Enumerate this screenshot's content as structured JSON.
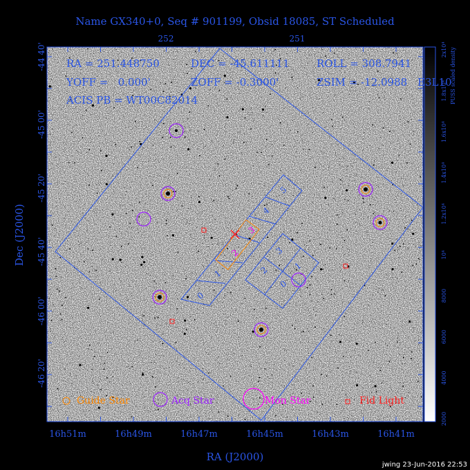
{
  "title": "Name GX340+0, Seq # 901199, Obsid 18085, ST Scheduled",
  "info": {
    "ra": "RA = 251.448750",
    "dec": "DEC = -45.611111",
    "roll": "ROLL = 308.7941",
    "yoff": "YOFF =   0.000'",
    "zoff": "ZOFF = -0.3000'",
    "zsim": "ZSIM = -12.0988",
    "acis": "ACIS PB = WT00C82014",
    "cut_text": "E3L10"
  },
  "axes": {
    "xlabel": "RA (J2000)",
    "ylabel": "Dec (J2000)",
    "ra_ticks": [
      "16h51m",
      "16h49m",
      "16h47m",
      "16h45m",
      "16h43m",
      "16h41m"
    ],
    "ra_top_ticks": [
      "252",
      "251"
    ],
    "dec_ticks": [
      "-44 40'",
      "-45 00'",
      "-45 20'",
      "-45 40'",
      "-46 00'",
      "-46 20'"
    ]
  },
  "colorbar": {
    "label": "PUSS scaled density",
    "ticks": [
      "2000",
      "4000",
      "6000",
      "8000",
      "10⁴",
      "1.2x10⁴",
      "1.4x10⁴",
      "1.6x10⁴",
      "1.8x10⁴",
      "2x10⁴"
    ]
  },
  "ccds": {
    "s_labels": [
      "0",
      "1",
      "2",
      "3",
      "4",
      "5"
    ],
    "i_labels": [
      "3",
      "1",
      "2",
      "0"
    ]
  },
  "legend": {
    "guide": "Guide Star",
    "acq": "Acq Star",
    "mon": "Mon Star",
    "fid": "Fid Light"
  },
  "footer": "jwing 23-Jun-2016 22:53",
  "colors": {
    "frame": "#2a55e6",
    "guide": "#ff8800",
    "acq": "#9b1fff",
    "mon": "#ff00ff",
    "fid": "#ff2020"
  }
}
